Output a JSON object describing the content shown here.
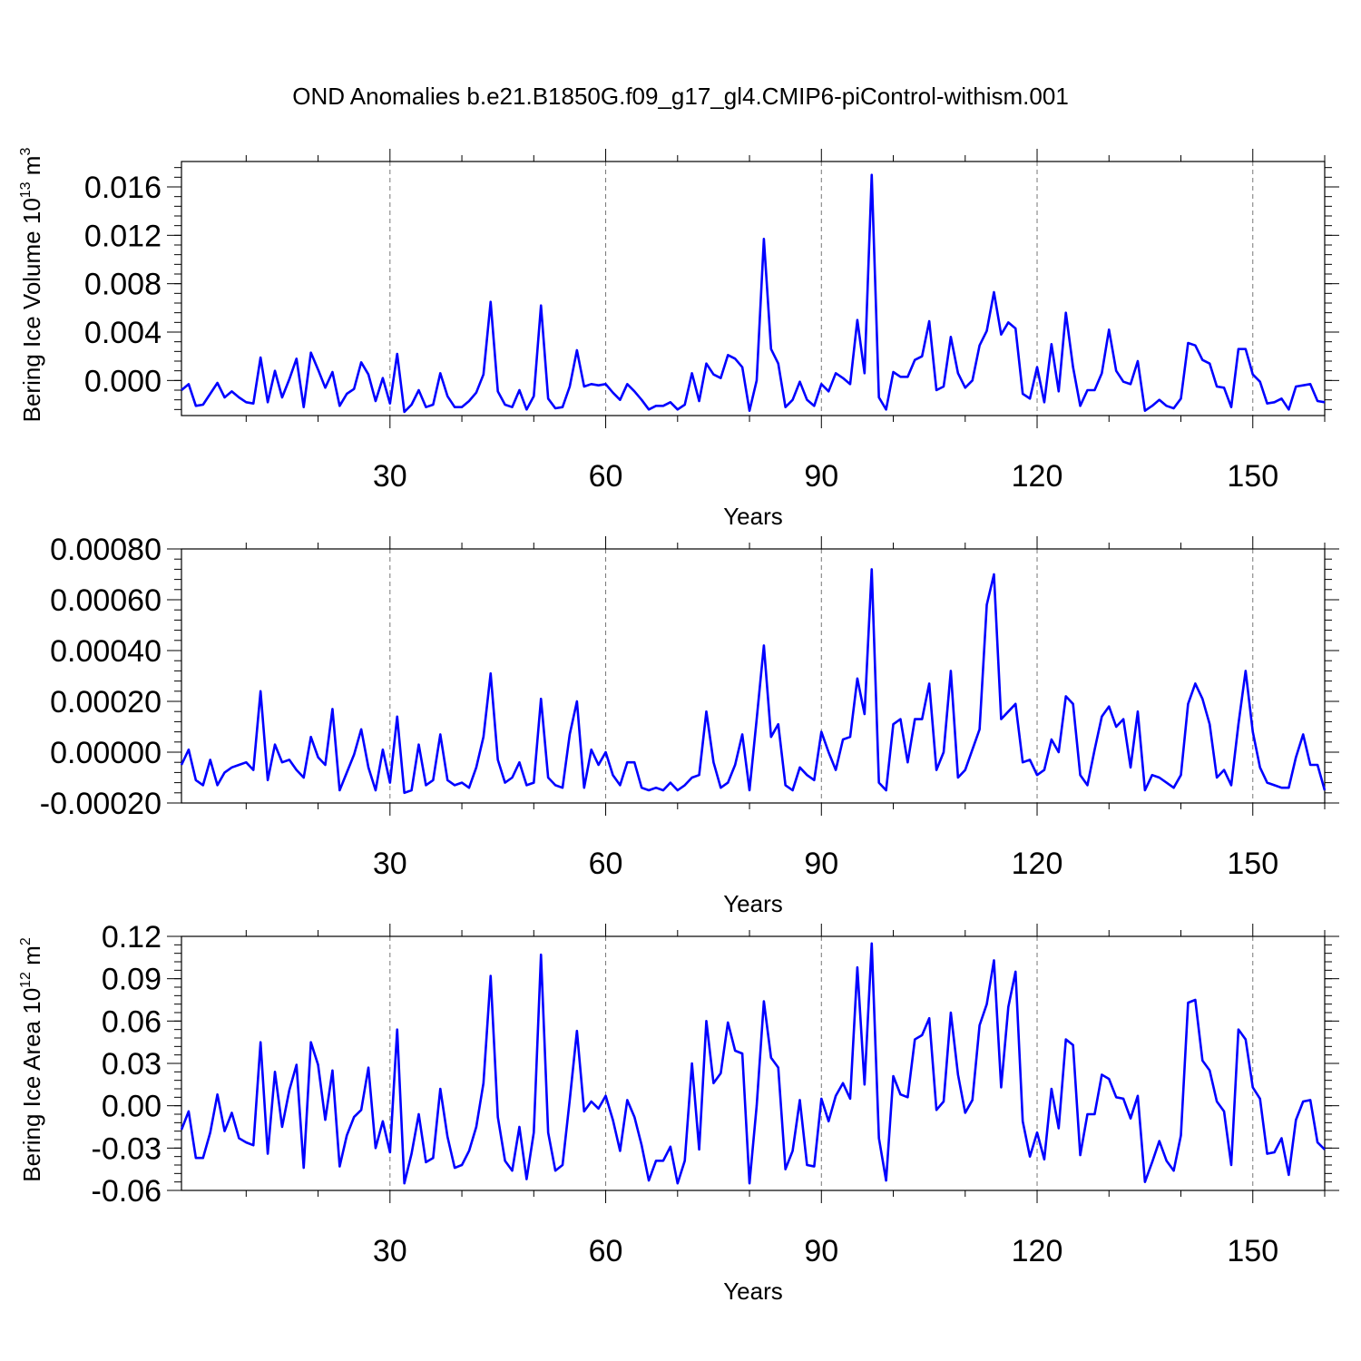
{
  "title": "OND Anomalies b.e21.B1850G.f09_g17_gl4.CMIP6-piControl-withism.001",
  "line_color": "#0000ff",
  "chart_data": [
    {
      "type": "line",
      "ylabel": "Bering Ice Volume 10",
      "ylabel_exponent": "13",
      "ylabel_unit": " m",
      "ylabel_unit_exponent": "3",
      "xlabel": "Years",
      "xlim": [
        1,
        160
      ],
      "ylim": [
        -0.0029,
        0.0181
      ],
      "yticks": [
        "0.000",
        "0.004",
        "0.008",
        "0.012",
        "0.016"
      ],
      "ytick_values": [
        0,
        0.004,
        0.008,
        0.012,
        0.016
      ],
      "xticks": [
        "30",
        "60",
        "90",
        "120",
        "150"
      ],
      "xtick_values": [
        30,
        60,
        90,
        120,
        150
      ],
      "grid_x": true,
      "series": [
        {
          "values": [
            -0.0008,
            -0.0003,
            -0.0021,
            -0.002,
            -0.0011,
            -0.0002,
            -0.0014,
            -0.0009,
            -0.0014,
            -0.0018,
            -0.0019,
            0.0019,
            -0.0018,
            0.0008,
            -0.0014,
            0.0001,
            0.0018,
            -0.0022,
            0.0023,
            0.0009,
            -0.0006,
            0.0007,
            -0.0021,
            -0.0011,
            -0.0007,
            0.0015,
            0.0005,
            -0.0017,
            0.0002,
            -0.0019,
            0.0022,
            -0.0026,
            -0.002,
            -0.0008,
            -0.0022,
            -0.002,
            0.0006,
            -0.0013,
            -0.0022,
            -0.0022,
            -0.0017,
            -0.001,
            0.0005,
            0.0065,
            -0.0009,
            -0.002,
            -0.0022,
            -0.0008,
            -0.0024,
            -0.0013,
            0.0062,
            -0.0015,
            -0.0023,
            -0.0022,
            -0.0005,
            0.0025,
            -0.0005,
            -0.0003,
            -0.0004,
            -0.0003,
            -0.001,
            -0.0016,
            -0.0003,
            -0.0009,
            -0.0016,
            -0.0024,
            -0.0021,
            -0.0021,
            -0.0018,
            -0.0024,
            -0.002,
            0.0006,
            -0.0017,
            0.0014,
            0.0005,
            0.0002,
            0.0021,
            0.0018,
            0.0011,
            -0.0025,
            0.0,
            0.0117,
            0.0026,
            0.0014,
            -0.0022,
            -0.0016,
            -0.0001,
            -0.0016,
            -0.0021,
            -0.0003,
            -0.0009,
            0.0006,
            0.0002,
            -0.0003,
            0.005,
            0.0006,
            0.017,
            -0.0014,
            -0.0024,
            0.0007,
            0.0003,
            0.0003,
            0.0017,
            0.002,
            0.0049,
            -0.0008,
            -0.0005,
            0.0036,
            0.0006,
            -0.0006,
            0.0,
            0.0029,
            0.0041,
            0.0073,
            0.0038,
            0.0048,
            0.0043,
            -0.0011,
            -0.0015,
            0.0011,
            -0.0018,
            0.003,
            -0.0009,
            0.0056,
            0.0011,
            -0.0021,
            -0.0008,
            -0.0008,
            0.0006,
            0.0042,
            0.0008,
            -0.0001,
            -0.0003,
            0.0016,
            -0.0025,
            -0.0021,
            -0.0016,
            -0.0021,
            -0.0023,
            -0.0015,
            0.0031,
            0.0029,
            0.0017,
            0.0014,
            -0.0005,
            -0.0006,
            -0.0022,
            0.0026,
            0.0026,
            0.0005,
            -0.0001,
            -0.0019,
            -0.0018,
            -0.0015,
            -0.0024,
            -0.0005,
            -0.0004,
            -0.0003,
            -0.0017,
            -0.0018
          ]
        }
      ]
    },
    {
      "type": "line",
      "ylabel": "",
      "xlabel": "Years",
      "xlim": [
        1,
        160
      ],
      "ylim": [
        -0.0002,
        0.0008
      ],
      "yticks": [
        "-0.00020",
        "0.00000",
        "0.00020",
        "0.00040",
        "0.00060",
        "0.00080"
      ],
      "ytick_values": [
        -0.0002,
        0,
        0.0002,
        0.0004,
        0.0006,
        0.0008
      ],
      "xticks": [
        "30",
        "60",
        "90",
        "120",
        "150"
      ],
      "xtick_values": [
        30,
        60,
        90,
        120,
        150
      ],
      "grid_x": true,
      "series": [
        {
          "values": [
            -5e-05,
            1e-05,
            -0.00011,
            -0.00013,
            -3e-05,
            -0.00013,
            -8e-05,
            -6e-05,
            -5e-05,
            -4e-05,
            -7e-05,
            0.00024,
            -0.00011,
            3e-05,
            -4e-05,
            -3e-05,
            -7e-05,
            -0.0001,
            6e-05,
            -2e-05,
            -5e-05,
            0.00017,
            -0.00015,
            -8e-05,
            -1e-05,
            9e-05,
            -6e-05,
            -0.00015,
            1e-05,
            -0.00012,
            0.00014,
            -0.00016,
            -0.00015,
            3e-05,
            -0.00013,
            -0.00011,
            7e-05,
            -0.00011,
            -0.00013,
            -0.00012,
            -0.00014,
            -6e-05,
            6e-05,
            0.00031,
            -3e-05,
            -0.00012,
            -0.0001,
            -4e-05,
            -0.00013,
            -0.00012,
            0.00021,
            -0.0001,
            -0.00013,
            -0.00014,
            7e-05,
            0.0002,
            -0.00014,
            1e-05,
            -5e-05,
            0.0,
            -9e-05,
            -0.00013,
            -4e-05,
            -4e-05,
            -0.00014,
            -0.00015,
            -0.00014,
            -0.00015,
            -0.00012,
            -0.00015,
            -0.00013,
            -0.0001,
            -9e-05,
            0.00016,
            -4e-05,
            -0.00014,
            -0.00012,
            -5e-05,
            7e-05,
            -0.00015,
            0.00013,
            0.00042,
            6e-05,
            0.00011,
            -0.00013,
            -0.00015,
            -6e-05,
            -9e-05,
            -0.00011,
            8e-05,
            0.0,
            -7e-05,
            5e-05,
            6e-05,
            0.00029,
            0.00015,
            0.00072,
            -0.00012,
            -0.00015,
            0.00011,
            0.00013,
            -4e-05,
            0.00013,
            0.00013,
            0.00027,
            -7e-05,
            0.0,
            0.00032,
            -0.0001,
            -7e-05,
            1e-05,
            9e-05,
            0.00058,
            0.0007,
            0.00013,
            0.00016,
            0.00019,
            -4e-05,
            -3e-05,
            -9e-05,
            -7e-05,
            5e-05,
            0.0,
            0.00022,
            0.00019,
            -9e-05,
            -0.00013,
            1e-05,
            0.00014,
            0.00018,
            0.0001,
            0.00013,
            -6e-05,
            0.00016,
            -0.00015,
            -9e-05,
            -0.0001,
            -0.00012,
            -0.00014,
            -9e-05,
            0.00019,
            0.00027,
            0.00021,
            0.00011,
            -0.0001,
            -7e-05,
            -0.00013,
            0.00011,
            0.00032,
            8e-05,
            -6e-05,
            -0.00012,
            -0.00013,
            -0.00014,
            -0.00014,
            -2e-05,
            7e-05,
            -5e-05,
            -5e-05,
            -0.00015
          ]
        }
      ]
    },
    {
      "type": "line",
      "ylabel": "Bering Ice Area 10",
      "ylabel_exponent": "12",
      "ylabel_unit": " m",
      "ylabel_unit_exponent": "2",
      "xlabel": "Years",
      "xlim": [
        1,
        160
      ],
      "ylim": [
        -0.06,
        0.12
      ],
      "yticks": [
        "-0.06",
        "-0.03",
        "0.00",
        "0.03",
        "0.06",
        "0.09",
        "0.12"
      ],
      "ytick_values": [
        -0.06,
        -0.03,
        0,
        0.03,
        0.06,
        0.09,
        0.12
      ],
      "xticks": [
        "30",
        "60",
        "90",
        "120",
        "150"
      ],
      "xtick_values": [
        30,
        60,
        90,
        120,
        150
      ],
      "grid_x": true,
      "series": [
        {
          "values": [
            -0.017,
            -0.004,
            -0.037,
            -0.037,
            -0.019,
            0.008,
            -0.018,
            -0.005,
            -0.023,
            -0.026,
            -0.028,
            0.045,
            -0.034,
            0.024,
            -0.015,
            0.011,
            0.029,
            -0.044,
            0.045,
            0.029,
            -0.01,
            0.025,
            -0.043,
            -0.021,
            -0.008,
            -0.003,
            0.027,
            -0.03,
            -0.011,
            -0.033,
            0.054,
            -0.055,
            -0.034,
            -0.006,
            -0.04,
            -0.037,
            0.012,
            -0.022,
            -0.044,
            -0.042,
            -0.032,
            -0.015,
            0.016,
            0.092,
            -0.008,
            -0.039,
            -0.046,
            -0.015,
            -0.052,
            -0.019,
            0.107,
            -0.019,
            -0.046,
            -0.042,
            0.004,
            0.053,
            -0.004,
            0.003,
            -0.002,
            0.007,
            -0.01,
            -0.032,
            0.004,
            -0.008,
            -0.028,
            -0.053,
            -0.039,
            -0.039,
            -0.029,
            -0.055,
            -0.039,
            0.03,
            -0.031,
            0.06,
            0.016,
            0.023,
            0.059,
            0.039,
            0.037,
            -0.055,
            0.0,
            0.074,
            0.034,
            0.027,
            -0.045,
            -0.032,
            0.004,
            -0.042,
            -0.043,
            0.005,
            -0.011,
            0.007,
            0.016,
            0.005,
            0.098,
            0.015,
            0.115,
            -0.023,
            -0.053,
            0.021,
            0.008,
            0.006,
            0.047,
            0.05,
            0.062,
            -0.003,
            0.003,
            0.066,
            0.022,
            -0.005,
            0.004,
            0.057,
            0.072,
            0.103,
            0.013,
            0.07,
            0.095,
            -0.011,
            -0.036,
            -0.019,
            -0.038,
            0.012,
            -0.016,
            0.047,
            0.043,
            -0.035,
            -0.006,
            -0.006,
            0.022,
            0.019,
            0.006,
            0.005,
            -0.009,
            0.007,
            -0.054,
            -0.04,
            -0.025,
            -0.039,
            -0.046,
            -0.021,
            0.073,
            0.075,
            0.032,
            0.025,
            0.003,
            -0.004,
            -0.042,
            0.054,
            0.047,
            0.013,
            0.005,
            -0.034,
            -0.033,
            -0.023,
            -0.049,
            -0.01,
            0.003,
            0.004,
            -0.026,
            -0.031
          ]
        }
      ]
    }
  ]
}
